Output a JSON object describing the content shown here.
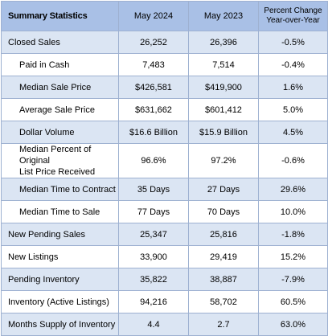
{
  "header": {
    "label": "Summary Statistics",
    "col_current": "May 2024",
    "col_prior": "May 2023",
    "col_change_line1": "Percent Change",
    "col_change_line2": "Year-over-Year"
  },
  "rows": [
    {
      "label": "Closed Sales",
      "current": "26,252",
      "prior": "26,396",
      "change": "-0.5%"
    },
    {
      "label": "Paid in Cash",
      "current": "7,483",
      "prior": "7,514",
      "change": "-0.4%"
    },
    {
      "label": "Median Sale Price",
      "current": "$426,581",
      "prior": "$419,900",
      "change": "1.6%"
    },
    {
      "label": "Average Sale Price",
      "current": "$631,662",
      "prior": "$601,412",
      "change": "5.0%"
    },
    {
      "label": "Dollar Volume",
      "current": "$16.6 Billion",
      "prior": "$15.9 Billion",
      "change": "4.5%"
    },
    {
      "label_line1": "Median Percent of Original",
      "label_line2": "List Price Received",
      "current": "96.6%",
      "prior": "97.2%",
      "change": "-0.6%"
    },
    {
      "label": "Median Time to Contract",
      "current": "35 Days",
      "prior": "27 Days",
      "change": "29.6%"
    },
    {
      "label": "Median Time to Sale",
      "current": "77 Days",
      "prior": "70 Days",
      "change": "10.0%"
    },
    {
      "label": "New Pending Sales",
      "current": "25,347",
      "prior": "25,816",
      "change": "-1.8%"
    },
    {
      "label": "New Listings",
      "current": "33,900",
      "prior": "29,419",
      "change": "15.2%"
    },
    {
      "label": "Pending Inventory",
      "current": "35,822",
      "prior": "38,887",
      "change": "-7.9%"
    },
    {
      "label": "Inventory (Active Listings)",
      "current": "94,216",
      "prior": "58,702",
      "change": "60.5%"
    },
    {
      "label": "Months Supply of Inventory",
      "current": "4.4",
      "prior": "2.7",
      "change": "63.0%"
    }
  ],
  "colors": {
    "header_bg": "#a9c0e6",
    "band_bg": "#dbe5f3",
    "border": "#9eb1d1"
  }
}
